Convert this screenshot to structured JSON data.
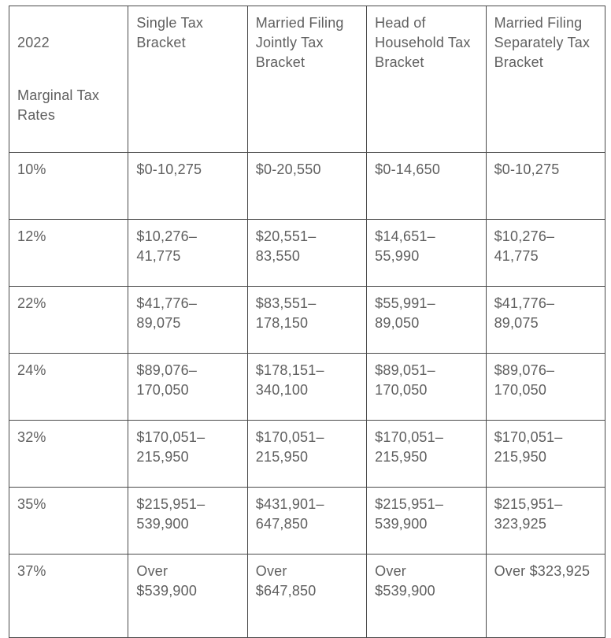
{
  "colors": {
    "background": "#ffffff",
    "text": "#5f5f5f",
    "border": "#4a4a4a"
  },
  "table": {
    "header": {
      "rates_year": "2022",
      "rates_label": "Marginal Tax\nRates",
      "single": "Single Tax\nBracket",
      "mfj": "Married Filing\nJointly Tax\nBracket",
      "hoh": "Head of\nHousehold Tax\nBracket",
      "mfs": "Married Filing\nSeparately Tax\nBracket"
    },
    "rows": [
      {
        "rate": "10%",
        "single": "$0-10,275",
        "mfj": "$0-20,550",
        "hoh": "$0-14,650",
        "mfs": "$0-10,275"
      },
      {
        "rate": "12%",
        "single": "$10,276–\n41,775",
        "mfj": "$20,551–\n83,550",
        "hoh": "$14,651–\n55,990",
        "mfs": "$10,276–\n41,775"
      },
      {
        "rate": "22%",
        "single": "$41,776–\n89,075",
        "mfj": "$83,551–\n178,150",
        "hoh": "$55,991–\n89,050",
        "mfs": "$41,776–\n89,075"
      },
      {
        "rate": "24%",
        "single": "$89,076–\n170,050",
        "mfj": "$178,151–\n340,100",
        "hoh": "$89,051–\n170,050",
        "mfs": "$89,076–\n170,050"
      },
      {
        "rate": "32%",
        "single": "$170,051–\n215,950",
        "mfj": "$170,051–\n215,950",
        "hoh": "$170,051–\n215,950",
        "mfs": "$170,051–\n215,950"
      },
      {
        "rate": "35%",
        "single": "$215,951–\n539,900",
        "mfj": "$431,901–\n647,850",
        "hoh": "$215,951–\n539,900",
        "mfs": "$215,951–\n323,925"
      },
      {
        "rate": "37%",
        "single": "Over\n$539,900",
        "mfj": "Over\n$647,850",
        "hoh": "Over\n$539,900",
        "mfs": "Over $323,925"
      }
    ]
  },
  "chart_data": {
    "type": "table",
    "columns": [
      "2022 Marginal Tax Rates",
      "Single Tax Bracket",
      "Married Filing Jointly Tax Bracket",
      "Head of Household Tax Bracket",
      "Married Filing Separately Tax Bracket"
    ],
    "rows": [
      [
        "10%",
        "$0-10,275",
        "$0-20,550",
        "$0-14,650",
        "$0-10,275"
      ],
      [
        "12%",
        "$10,276–41,775",
        "$20,551–83,550",
        "$14,651–55,990",
        "$10,276–41,775"
      ],
      [
        "22%",
        "$41,776–89,075",
        "$83,551–178,150",
        "$55,991–89,050",
        "$41,776–89,075"
      ],
      [
        "24%",
        "$89,076–170,050",
        "$178,151–340,100",
        "$89,051–170,050",
        "$89,076–170,050"
      ],
      [
        "32%",
        "$170,051–215,950",
        "$170,051–215,950",
        "$170,051–215,950",
        "$170,051–215,950"
      ],
      [
        "35%",
        "$215,951–539,900",
        "$431,901–647,850",
        "$215,951–539,900",
        "$215,951–323,925"
      ],
      [
        "37%",
        "Over $539,900",
        "Over $647,850",
        "Over $539,900",
        "Over $323,925"
      ]
    ]
  }
}
